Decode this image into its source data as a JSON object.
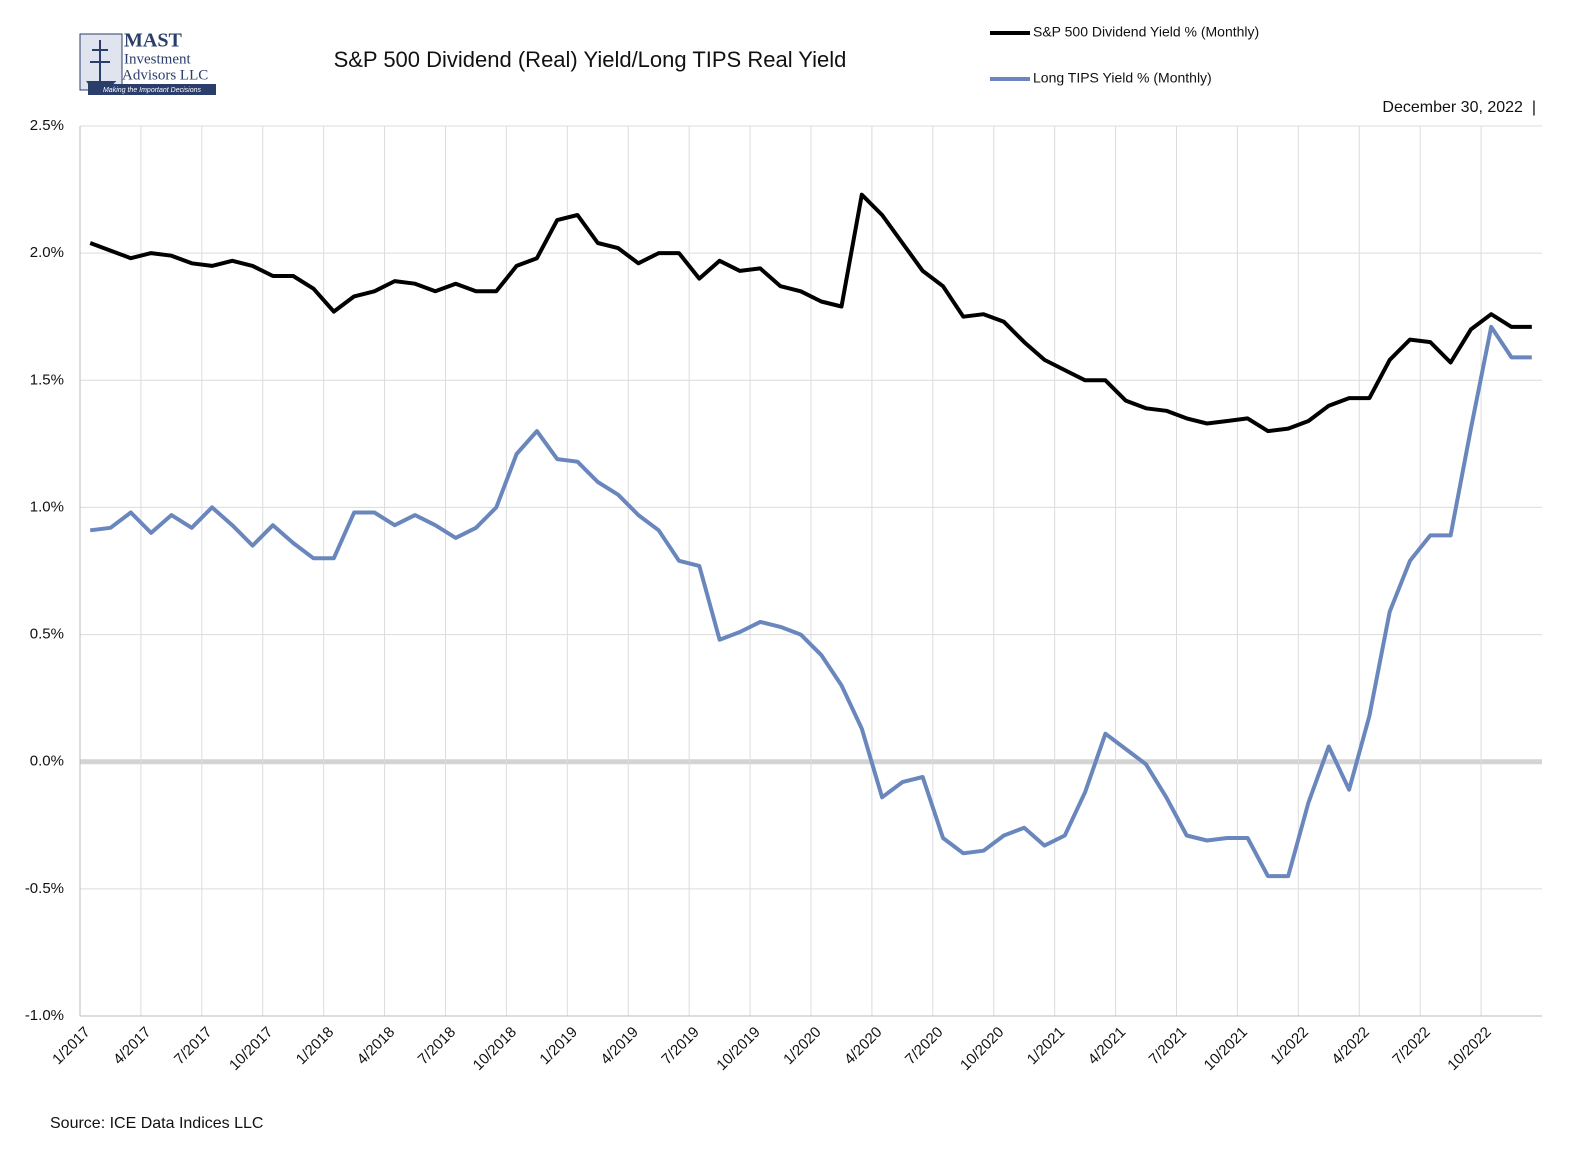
{
  "logo": {
    "name": "MAST",
    "line1": "Investment",
    "line2": "Advisors LLC",
    "tagline": "Making the Important Decisions"
  },
  "chart_data": {
    "type": "line",
    "title": "S&P 500 Dividend (Real) Yield/Long TIPS Real Yield",
    "date": "December 30, 2022  |",
    "source": "Source: ICE Data Indices LLC",
    "categories": [
      "1/2017",
      null,
      null,
      "4/2017",
      null,
      null,
      "7/2017",
      null,
      null,
      "10/2017",
      null,
      null,
      "1/2018",
      null,
      null,
      "4/2018",
      null,
      null,
      "7/2018",
      null,
      null,
      "10/2018",
      null,
      null,
      "1/2019",
      null,
      null,
      "4/2019",
      null,
      null,
      "7/2019",
      null,
      null,
      "10/2019",
      null,
      null,
      "1/2020",
      null,
      null,
      "4/2020",
      null,
      null,
      "7/2020",
      null,
      null,
      "10/2020",
      null,
      null,
      "1/2021",
      null,
      null,
      "4/2021",
      null,
      null,
      "7/2021",
      null,
      null,
      "10/2021",
      null,
      null,
      "1/2022",
      null,
      null,
      "4/2022",
      null,
      null,
      "7/2022",
      null,
      null,
      "10/2022",
      null,
      null
    ],
    "series": [
      {
        "name": "S&P 500 Dividend Yield % (Monthly)",
        "color": "#000000",
        "values": [
          2.04,
          2.01,
          1.98,
          2.0,
          1.99,
          1.96,
          1.95,
          1.97,
          1.95,
          1.91,
          1.91,
          1.86,
          1.77,
          1.83,
          1.85,
          1.89,
          1.88,
          1.85,
          1.88,
          1.85,
          1.85,
          1.95,
          1.98,
          2.13,
          2.15,
          2.04,
          2.02,
          1.96,
          2.0,
          2.0,
          1.9,
          1.97,
          1.93,
          1.94,
          1.87,
          1.85,
          1.81,
          1.79,
          2.23,
          2.15,
          2.04,
          1.93,
          1.87,
          1.75,
          1.76,
          1.73,
          1.65,
          1.58,
          1.54,
          1.5,
          1.5,
          1.42,
          1.39,
          1.38,
          1.35,
          1.33,
          1.34,
          1.35,
          1.3,
          1.31,
          1.34,
          1.4,
          1.43,
          1.43,
          1.58,
          1.66,
          1.65,
          1.57,
          1.7,
          1.76,
          1.71,
          1.71
        ]
      },
      {
        "name": "Long TIPS Yield % (Monthly)",
        "color": "#6a87bd",
        "values": [
          0.91,
          0.92,
          0.98,
          0.9,
          0.97,
          0.92,
          1.0,
          0.93,
          0.85,
          0.93,
          0.86,
          0.8,
          0.8,
          0.98,
          0.98,
          0.93,
          0.97,
          0.93,
          0.88,
          0.92,
          1.0,
          1.21,
          1.3,
          1.19,
          1.18,
          1.1,
          1.05,
          0.97,
          0.91,
          0.79,
          0.77,
          0.48,
          0.51,
          0.55,
          0.53,
          0.5,
          0.42,
          0.3,
          0.13,
          -0.14,
          -0.08,
          -0.06,
          -0.3,
          -0.36,
          -0.35,
          -0.29,
          -0.26,
          -0.33,
          -0.29,
          -0.12,
          0.11,
          0.05,
          -0.01,
          -0.14,
          -0.29,
          -0.31,
          -0.3,
          -0.3,
          -0.45,
          -0.45,
          -0.16,
          0.06,
          -0.11,
          0.18,
          0.59,
          0.79,
          0.89,
          0.89,
          1.31,
          1.71,
          1.59,
          1.59
        ]
      }
    ],
    "ylim": [
      -1.0,
      2.5
    ],
    "yticks": [
      {
        "value": -1.0,
        "label": "-1.0%"
      },
      {
        "value": -0.5,
        "label": "-0.5%"
      },
      {
        "value": 0.0,
        "label": "0.0%"
      },
      {
        "value": 0.5,
        "label": "0.5%"
      },
      {
        "value": 1.0,
        "label": "1.0%"
      },
      {
        "value": 1.5,
        "label": "1.5%"
      },
      {
        "value": 2.0,
        "label": "2.0%"
      },
      {
        "value": 2.5,
        "label": "2.5%"
      }
    ],
    "grid": true
  }
}
